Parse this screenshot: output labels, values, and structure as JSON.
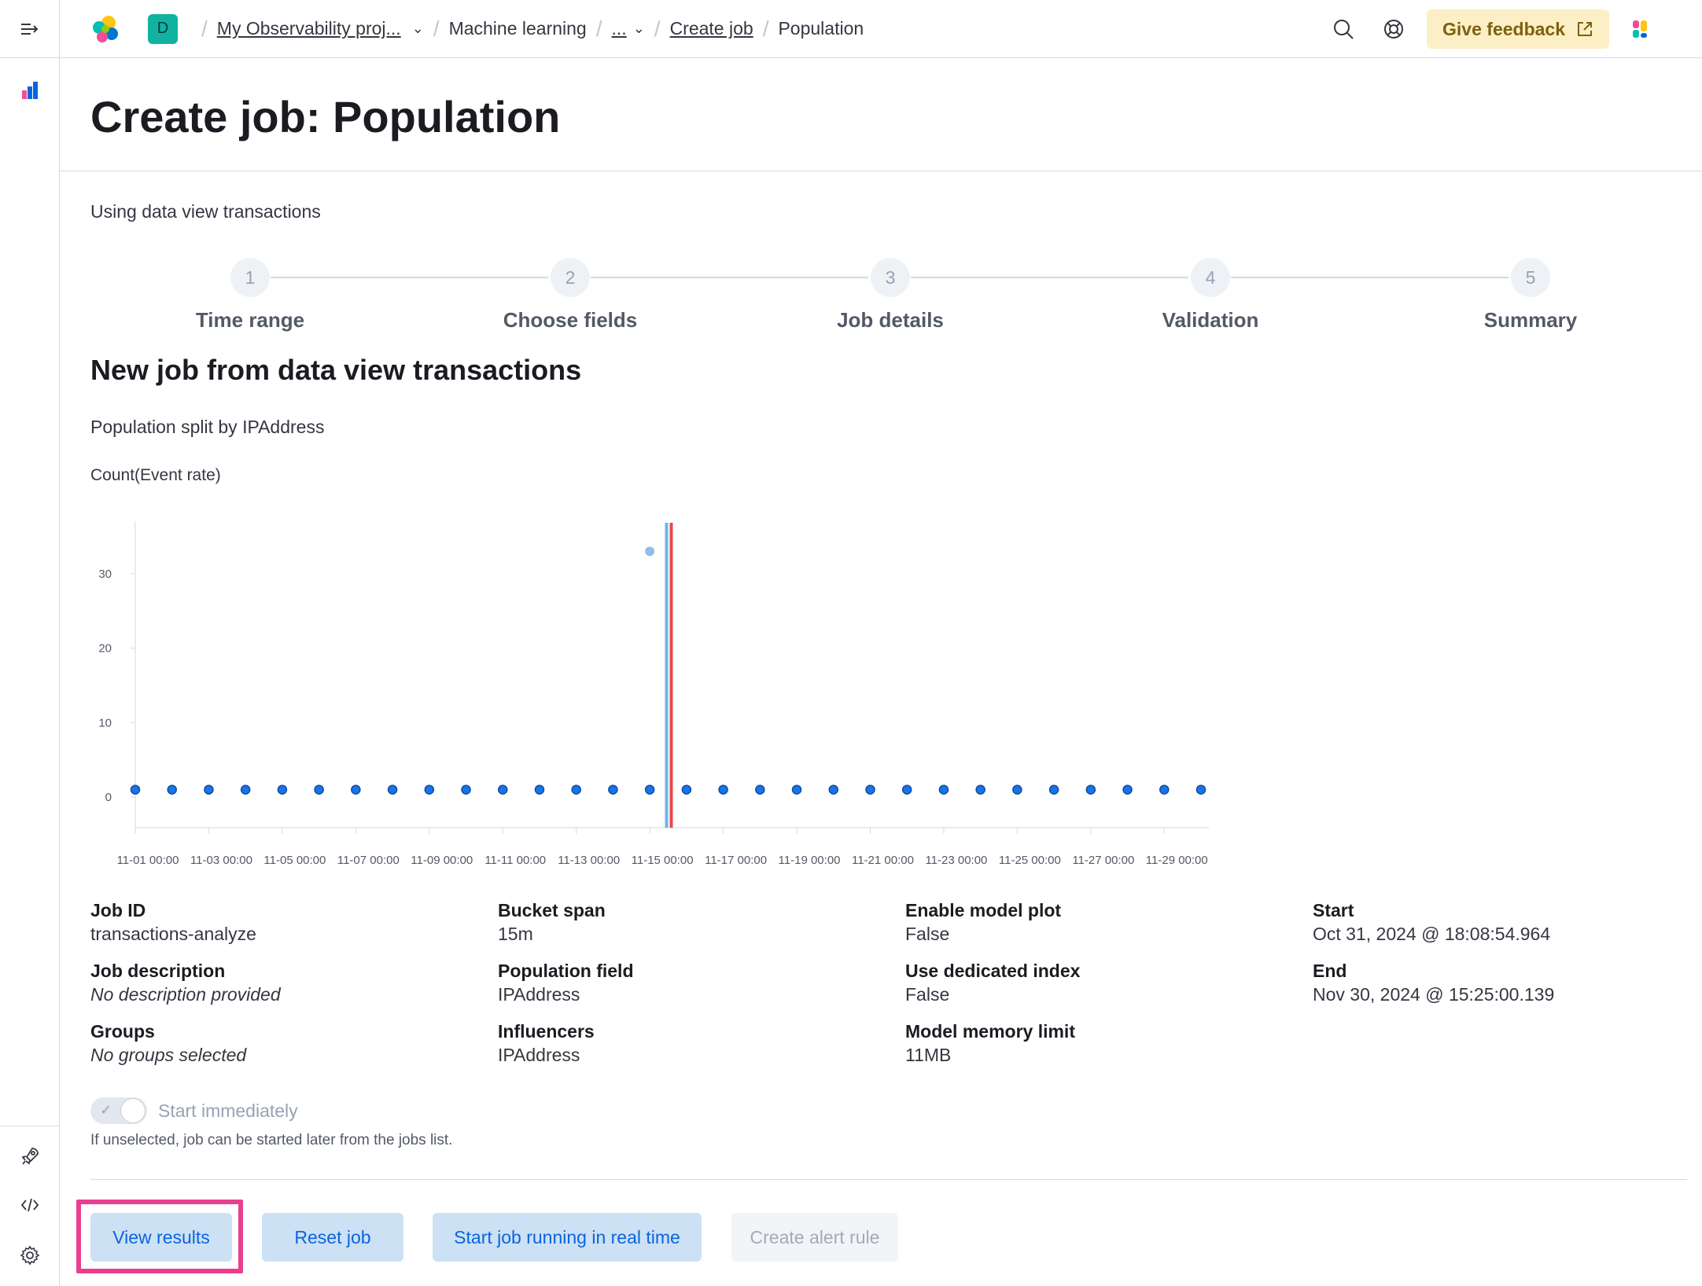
{
  "topbar": {
    "space_letter": "D",
    "breadcrumbs": {
      "project": "My Observability proj...",
      "ml": "Machine learning",
      "ellipsis": "...",
      "create_job": "Create job",
      "current": "Population"
    },
    "feedback_label": "Give feedback"
  },
  "page": {
    "title": "Create job: Population",
    "using_text": "Using data view transactions"
  },
  "steps": [
    {
      "number": "1",
      "title": "Time range"
    },
    {
      "number": "2",
      "title": "Choose fields"
    },
    {
      "number": "3",
      "title": "Job details"
    },
    {
      "number": "4",
      "title": "Validation"
    },
    {
      "number": "5",
      "title": "Summary"
    }
  ],
  "summary": {
    "title": "New job from data view transactions",
    "split_text": "Population split by IPAddress",
    "chart_label": "Count(Event rate)"
  },
  "chart_data": {
    "type": "scatter",
    "title": "Count(Event rate)",
    "x": [
      "11-01 00:00",
      "11-02 00:00",
      "11-03 00:00",
      "11-04 00:00",
      "11-05 00:00",
      "11-06 00:00",
      "11-07 00:00",
      "11-08 00:00",
      "11-09 00:00",
      "11-10 00:00",
      "11-11 00:00",
      "11-12 00:00",
      "11-13 00:00",
      "11-14 00:00",
      "11-15 00:00",
      "11-16 00:00",
      "11-17 00:00",
      "11-18 00:00",
      "11-19 00:00",
      "11-20 00:00",
      "11-21 00:00",
      "11-22 00:00",
      "11-23 00:00",
      "11-24 00:00",
      "11-25 00:00",
      "11-26 00:00",
      "11-27 00:00",
      "11-28 00:00",
      "11-29 00:00",
      "11-30 00:00"
    ],
    "values": [
      1,
      1,
      1,
      1,
      1,
      1,
      1,
      1,
      1,
      1,
      1,
      1,
      1,
      1,
      1,
      1,
      1,
      1,
      1,
      1,
      1,
      1,
      1,
      1,
      1,
      1,
      1,
      1,
      1,
      1
    ],
    "highlight_point": {
      "x": "11-15 00:00",
      "value": 33
    },
    "xticks": [
      "11-01 00:00",
      "11-03 00:00",
      "11-05 00:00",
      "11-07 00:00",
      "11-09 00:00",
      "11-11 00:00",
      "11-13 00:00",
      "11-15 00:00",
      "11-17 00:00",
      "11-19 00:00",
      "11-21 00:00",
      "11-23 00:00",
      "11-25 00:00",
      "11-27 00:00",
      "11-29 00:00"
    ],
    "yticks": [
      0,
      10,
      20,
      30
    ],
    "ylim": [
      -2,
      36
    ],
    "marker_x": "11-15 12:00",
    "colors": {
      "point": "#1a73e8",
      "point_stroke": "#0b4ea2",
      "highlight": "#93bce6",
      "marker_blue": "#6fb3ea",
      "marker_red": "#e7484e"
    }
  },
  "details": {
    "col1": [
      {
        "label": "Job ID",
        "value": "transactions-analyze"
      },
      {
        "label": "Job description",
        "value": "No description provided",
        "italic": true
      },
      {
        "label": "Groups",
        "value": "No groups selected",
        "italic": true
      }
    ],
    "col2": [
      {
        "label": "Bucket span",
        "value": "15m"
      },
      {
        "label": "Population field",
        "value": "IPAddress"
      },
      {
        "label": "Influencers",
        "value": "IPAddress"
      }
    ],
    "col3": [
      {
        "label": "Enable model plot",
        "value": "False"
      },
      {
        "label": "Use dedicated index",
        "value": "False"
      },
      {
        "label": "Model memory limit",
        "value": "11MB"
      }
    ],
    "col4": [
      {
        "label": "Start",
        "value": "Oct 31, 2024 @ 18:08:54.964"
      },
      {
        "label": "End",
        "value": "Nov 30, 2024 @ 15:25:00.139"
      }
    ]
  },
  "start_toggle": {
    "label": "Start immediately",
    "help": "If unselected, job can be started later from the jobs list."
  },
  "buttons": {
    "view_results": "View results",
    "reset_job": "Reset job",
    "start_realtime": "Start job running in real time",
    "create_alert": "Create alert rule"
  }
}
